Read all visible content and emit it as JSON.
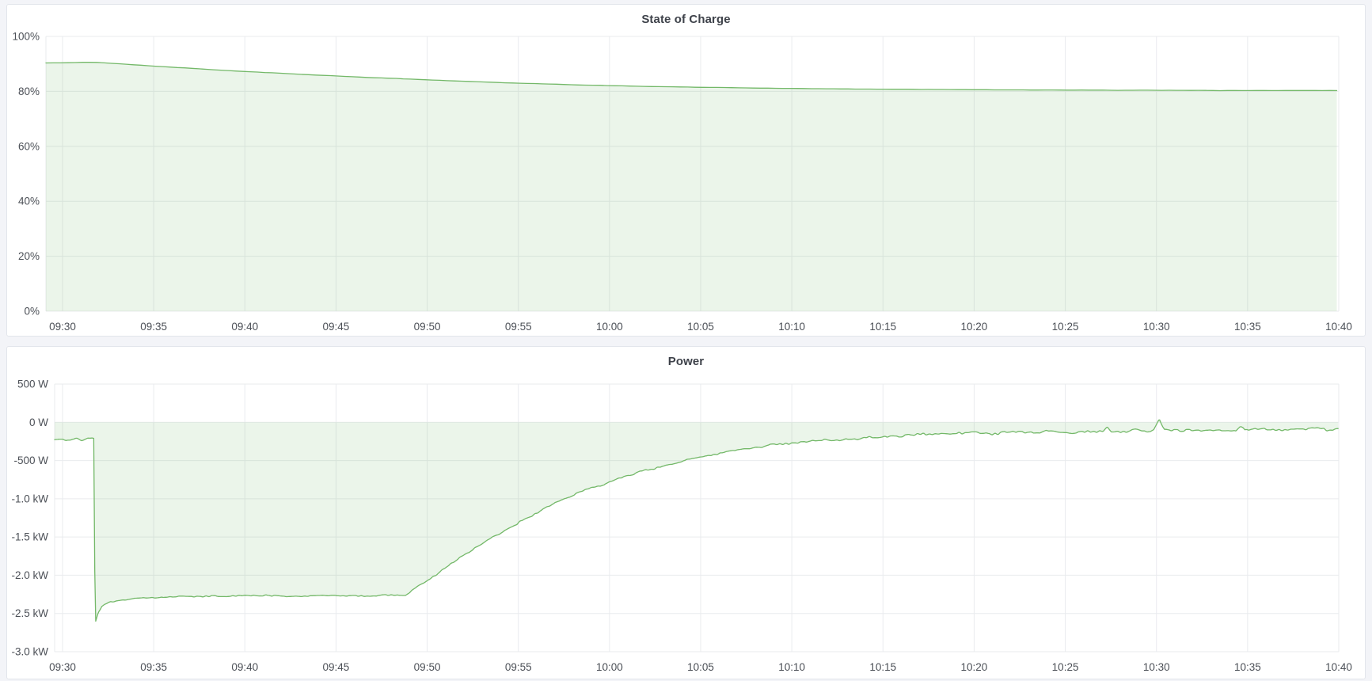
{
  "dashboard": {
    "background_color": "#f3f4f8",
    "panel_background_color": "#ffffff",
    "accent_color": "#73b868"
  },
  "panels": [
    {
      "title": "State of Charge",
      "chart_data": {
        "type": "area",
        "title": "State of Charge",
        "unit": "%",
        "xlabel": "",
        "ylabel": "",
        "grid": true,
        "legend_position": "none",
        "ylim": [
          0,
          100
        ],
        "x_tick_interval_minutes": 5,
        "x_ticks": [
          "09:30",
          "09:35",
          "09:40",
          "09:45",
          "09:50",
          "09:55",
          "10:00",
          "10:05",
          "10:10",
          "10:15",
          "10:20",
          "10:25",
          "10:30",
          "10:35",
          "10:40"
        ],
        "y_ticks": [
          {
            "label": "100%",
            "value": 100
          },
          {
            "label": "80%",
            "value": 80
          },
          {
            "label": "60%",
            "value": 60
          },
          {
            "label": "40%",
            "value": 40
          },
          {
            "label": "20%",
            "value": 20
          },
          {
            "label": "0%",
            "value": 0
          }
        ],
        "series": [
          {
            "name": "State of Charge",
            "color": "#73b868",
            "fill_color": "rgba(115,184,104,0.14)",
            "fill_to_value": 0,
            "noise_amplitude": 0.05,
            "points_minutes_value": [
              [
                -0.91,
                90.35
              ],
              [
                0,
                90.4
              ],
              [
                1,
                90.55
              ],
              [
                1.6,
                90.6
              ],
              [
                2.2,
                90.45
              ],
              [
                3,
                90.1
              ],
              [
                4,
                89.65
              ],
              [
                5,
                89.2
              ],
              [
                6,
                88.8
              ],
              [
                7,
                88.4
              ],
              [
                8,
                88.0
              ],
              [
                9,
                87.6
              ],
              [
                10,
                87.25
              ],
              [
                11,
                86.9
              ],
              [
                12,
                86.55
              ],
              [
                13,
                86.2
              ],
              [
                14,
                85.9
              ],
              [
                15,
                85.6
              ],
              [
                16,
                85.3
              ],
              [
                17,
                85.0
              ],
              [
                18,
                84.75
              ],
              [
                19,
                84.5
              ],
              [
                20,
                84.2
              ],
              [
                21,
                83.95
              ],
              [
                22,
                83.7
              ],
              [
                23,
                83.45
              ],
              [
                24,
                83.2
              ],
              [
                25,
                83.0
              ],
              [
                26,
                82.8
              ],
              [
                27,
                82.6
              ],
              [
                28,
                82.4
              ],
              [
                29,
                82.25
              ],
              [
                30,
                82.1
              ],
              [
                31,
                81.95
              ],
              [
                32,
                81.8
              ],
              [
                33,
                81.7
              ],
              [
                34,
                81.6
              ],
              [
                35,
                81.5
              ],
              [
                36,
                81.4
              ],
              [
                37,
                81.3
              ],
              [
                38,
                81.2
              ],
              [
                39,
                81.15
              ],
              [
                40,
                81.1
              ],
              [
                41,
                81.0
              ],
              [
                42,
                80.95
              ],
              [
                43,
                80.9
              ],
              [
                44,
                80.85
              ],
              [
                45,
                80.8
              ],
              [
                46,
                80.75
              ],
              [
                47,
                80.72
              ],
              [
                48,
                80.7
              ],
              [
                49,
                80.65
              ],
              [
                50,
                80.6
              ],
              [
                51,
                80.58
              ],
              [
                52,
                80.55
              ],
              [
                53,
                80.52
              ],
              [
                54,
                80.5
              ],
              [
                55,
                80.48
              ],
              [
                56,
                80.45
              ],
              [
                57,
                80.43
              ],
              [
                58,
                80.4
              ],
              [
                59,
                80.4
              ],
              [
                60,
                80.4
              ],
              [
                62,
                80.35
              ],
              [
                64,
                80.3
              ],
              [
                66,
                80.3
              ],
              [
                68,
                80.3
              ],
              [
                70,
                80.3
              ]
            ]
          }
        ]
      }
    },
    {
      "title": "Power",
      "chart_data": {
        "type": "area",
        "title": "Power",
        "unit": "W",
        "xlabel": "",
        "ylabel": "",
        "grid": true,
        "legend_position": "none",
        "ylim": [
          -3000,
          500
        ],
        "x_tick_interval_minutes": 5,
        "x_ticks": [
          "09:30",
          "09:35",
          "09:40",
          "09:45",
          "09:50",
          "09:55",
          "10:00",
          "10:05",
          "10:10",
          "10:15",
          "10:20",
          "10:25",
          "10:30",
          "10:35",
          "10:40"
        ],
        "y_ticks": [
          {
            "label": "500 W",
            "value": 500
          },
          {
            "label": "0 W",
            "value": 0
          },
          {
            "label": "-500 W",
            "value": -500
          },
          {
            "label": "-1.0 kW",
            "value": -1000
          },
          {
            "label": "-1.5 kW",
            "value": -1500
          },
          {
            "label": "-2.0 kW",
            "value": -2000
          },
          {
            "label": "-2.5 kW",
            "value": -2500
          },
          {
            "label": "-3.0 kW",
            "value": -3000
          }
        ],
        "series": [
          {
            "name": "Power",
            "color": "#73b868",
            "fill_color": "rgba(115,184,104,0.14)",
            "fill_to_value": 0,
            "noise": {
              "segments": [
                {
                  "until": 1.72,
                  "amp": 25
                },
                {
                  "until": 2.1,
                  "amp": 8
                },
                {
                  "until": 18.8,
                  "amp": 15
                },
                {
                  "until": 42,
                  "amp": 20
                },
                {
                  "until": 71,
                  "amp": 30
                }
              ],
              "spikes": [
                {
                  "t": 57.3,
                  "amp": 60,
                  "w": 0.22
                },
                {
                  "t": 60.15,
                  "amp": 135,
                  "w": 0.3
                },
                {
                  "t": 64.6,
                  "amp": 70,
                  "w": 0.25
                }
              ]
            },
            "points_minutes_value": [
              [
                -0.45,
                -220
              ],
              [
                0,
                -215
              ],
              [
                0.35,
                -240
              ],
              [
                0.7,
                -205
              ],
              [
                1.05,
                -245
              ],
              [
                1.4,
                -215
              ],
              [
                1.73,
                -230
              ],
              [
                1.78,
                -2640
              ],
              [
                1.95,
                -2500
              ],
              [
                2.15,
                -2420
              ],
              [
                2.5,
                -2360
              ],
              [
                3,
                -2330
              ],
              [
                3.7,
                -2305
              ],
              [
                4.5,
                -2292
              ],
              [
                6,
                -2282
              ],
              [
                8,
                -2274
              ],
              [
                10,
                -2268
              ],
              [
                12,
                -2272
              ],
              [
                14,
                -2266
              ],
              [
                16,
                -2271
              ],
              [
                17.5,
                -2268
              ],
              [
                18.8,
                -2262
              ],
              [
                19.4,
                -2170
              ],
              [
                20,
                -2075
              ],
              [
                21,
                -1895
              ],
              [
                22,
                -1730
              ],
              [
                23,
                -1580
              ],
              [
                24,
                -1450
              ],
              [
                25,
                -1320
              ],
              [
                26,
                -1185
              ],
              [
                27,
                -1055
              ],
              [
                28,
                -950
              ],
              [
                29,
                -858
              ],
              [
                30,
                -780
              ],
              [
                31,
                -702
              ],
              [
                32,
                -630
              ],
              [
                33,
                -562
              ],
              [
                34,
                -502
              ],
              [
                35,
                -452
              ],
              [
                36,
                -408
              ],
              [
                37,
                -368
              ],
              [
                38,
                -330
              ],
              [
                39,
                -298
              ],
              [
                40,
                -268
              ],
              [
                41,
                -248
              ],
              [
                42,
                -232
              ],
              [
                43,
                -218
              ],
              [
                44,
                -205
              ],
              [
                45,
                -192
              ],
              [
                46,
                -178
              ],
              [
                47,
                -167
              ],
              [
                48,
                -157
              ],
              [
                49,
                -150
              ],
              [
                50,
                -144
              ],
              [
                51,
                -139
              ],
              [
                52,
                -134
              ],
              [
                54,
                -127
              ],
              [
                56,
                -121
              ],
              [
                58,
                -116
              ],
              [
                60,
                -111
              ],
              [
                62,
                -106
              ],
              [
                64,
                -101
              ],
              [
                66,
                -97
              ],
              [
                68,
                -93
              ],
              [
                70,
                -88
              ]
            ]
          }
        ]
      }
    }
  ]
}
